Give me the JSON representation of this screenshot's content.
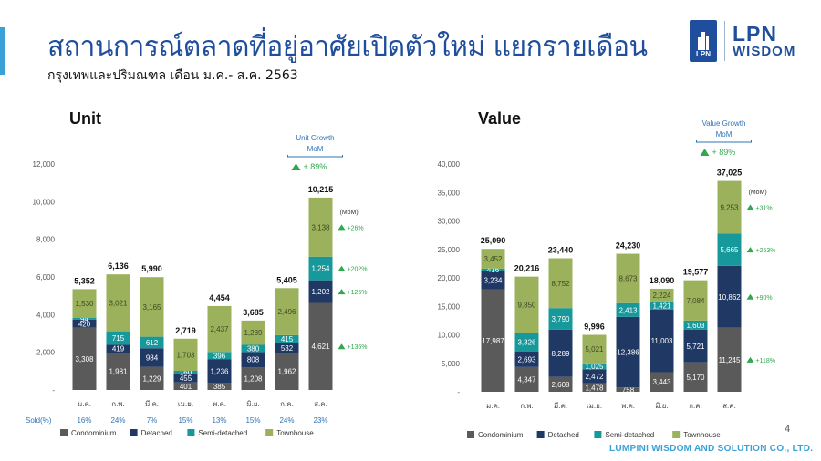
{
  "header": {
    "title": "สถานการณ์ตลาดที่อยู่อาศัยเปิดตัวใหม่ แยกรายเดือน",
    "subtitle": "กรุงเทพและปริมณฑล เดือน ม.ค.- ส.ค. 2563"
  },
  "logo": {
    "box_text": "LPN",
    "line1": "LPN",
    "line2": "WISDOM"
  },
  "footer": {
    "page": "4",
    "company": "LUMPINI WISDOM AND SOLUTION CO., LTD."
  },
  "colors": {
    "condominium": "#5a5a5a",
    "detached": "#1f3864",
    "semi_detached": "#17989b",
    "townhouse": "#9bb15c",
    "growth": "#2fa84f",
    "title_blue": "#1f4e9c",
    "sold_blue": "#2e75b6"
  },
  "chart_data": [
    {
      "type": "bar",
      "stacked": true,
      "title": "Unit",
      "categories": [
        "ม.ค.",
        "ก.พ.",
        "มี.ค.",
        "เม.ย.",
        "พ.ค.",
        "มิ.ย.",
        "ก.ค.",
        "ส.ค."
      ],
      "ylim": [
        0,
        12000
      ],
      "yticks": [
        "-",
        "2,000",
        "4,000",
        "6,000",
        "8,000",
        "10,000",
        "12,000"
      ],
      "series": [
        {
          "name": "Condominium",
          "values": [
            3308,
            1981,
            1229,
            401,
            385,
            1208,
            1962,
            4621
          ],
          "labels": [
            "3,308",
            "1,981",
            "1,229",
            "401",
            "385",
            "1,208",
            "1,962",
            "4,621"
          ]
        },
        {
          "name": "Detached",
          "values": [
            420,
            419,
            984,
            455,
            1236,
            808,
            532,
            1202
          ],
          "labels": [
            "420",
            "419",
            "984",
            "455",
            "1,236",
            "808",
            "532",
            "1,202"
          ]
        },
        {
          "name": "Semi-detached",
          "values": [
            94,
            715,
            612,
            160,
            396,
            380,
            415,
            1254
          ],
          "labels": [
            "94",
            "715",
            "612",
            "160",
            "396",
            "380",
            "415",
            "1,254"
          ]
        },
        {
          "name": "Townhouse",
          "values": [
            1530,
            3021,
            3165,
            1703,
            2437,
            1289,
            2496,
            3138
          ],
          "labels": [
            "1,530",
            "3,021",
            "3,165",
            "1,703",
            "2,437",
            "1,289",
            "2,496",
            "3,138"
          ]
        }
      ],
      "totals": [
        "5,352",
        "6,136",
        "5,990",
        "2,719",
        "4,454",
        "3,685",
        "5,405",
        "10,215"
      ],
      "sold_label": "Sold(%)",
      "sold": [
        "16%",
        "24%",
        "7%",
        "15%",
        "13%",
        "15%",
        "24%",
        "23%"
      ],
      "growth_box": {
        "line1": "Unit Growth",
        "line2": "MoM",
        "value": "+ 89%"
      },
      "mom_label": "(MoM)",
      "mom_growth": [
        "+26%",
        "+202%",
        "+126%",
        "+136%"
      ],
      "legend": [
        "Condominium",
        "Detached",
        "Semi-detached",
        "Townhouse"
      ]
    },
    {
      "type": "bar",
      "stacked": true,
      "title": "Value",
      "categories": [
        "ม.ค.",
        "ก.พ.",
        "มี.ค.",
        "เม.ย.",
        "พ.ค.",
        "มิ.ย.",
        "ก.ค.",
        "ส.ค."
      ],
      "ylim": [
        0,
        40000
      ],
      "yticks": [
        "-",
        "5,000",
        "10,000",
        "15,000",
        "20,000",
        "25,000",
        "30,000",
        "35,000",
        "40,000"
      ],
      "series": [
        {
          "name": "Condominium",
          "values": [
            17987,
            4347,
            2608,
            1478,
            758,
            3443,
            5170,
            11245
          ],
          "labels": [
            "17,987",
            "4,347",
            "2,608",
            "1,478",
            "758",
            "3,443",
            "5,170",
            "11,245"
          ]
        },
        {
          "name": "Detached",
          "values": [
            3234,
            2693,
            8289,
            2472,
            12386,
            11003,
            5721,
            10862
          ],
          "labels": [
            "3,234",
            "2,693",
            "8,289",
            "2,472",
            "12,386",
            "11,003",
            "5,721",
            "10,862"
          ]
        },
        {
          "name": "Semi-detached",
          "values": [
            416,
            3326,
            3790,
            1025,
            2413,
            1421,
            1603,
            5665
          ],
          "labels": [
            "416",
            "3,326",
            "3,790",
            "1,025",
            "2,413",
            "1,421",
            "1,603",
            "5,665"
          ]
        },
        {
          "name": "Townhouse",
          "values": [
            3452,
            9850,
            8752,
            5021,
            8673,
            2224,
            7084,
            9253
          ],
          "labels": [
            "3,452",
            "9,850",
            "8,752",
            "5,021",
            "8,673",
            "2,224",
            "7,084",
            "9,253"
          ]
        }
      ],
      "totals": [
        "25,090",
        "20,216",
        "23,440",
        "9,996",
        "24,230",
        "18,090",
        "19,577",
        "37,025"
      ],
      "growth_box": {
        "line1": "Value Growth",
        "line2": "MoM",
        "value": "+ 89%"
      },
      "mom_label": "(MoM)",
      "mom_growth": [
        "+31%",
        "+253%",
        "+90%",
        "+118%"
      ],
      "legend": [
        "Condominium",
        "Detached",
        "Semi-detached",
        "Townhouse"
      ]
    }
  ]
}
